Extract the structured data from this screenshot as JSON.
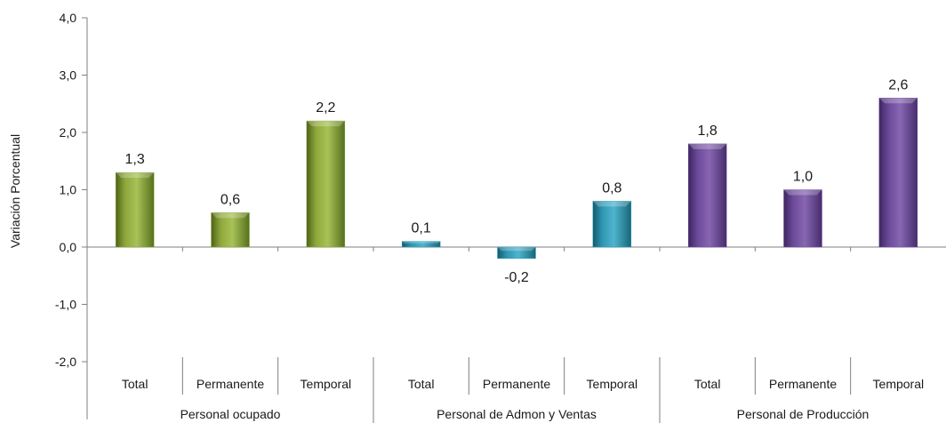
{
  "chart_data": {
    "type": "bar",
    "title": "",
    "xlabel": "",
    "ylabel": "Variación Porcentual",
    "ylim": [
      -2.0,
      4.0
    ],
    "yticks": [
      "4,0",
      "3,0",
      "2,0",
      "1,0",
      "0,0",
      "-1,0",
      "-2,0"
    ],
    "grid": false,
    "legend": "none",
    "colors": {
      "green": "#8aa33a",
      "teal": "#2f97b3",
      "purple": "#6d4a9a"
    },
    "groups": [
      {
        "name": "Personal ocupado",
        "color": "green",
        "categories": [
          "Total",
          "Permanente",
          "Temporal"
        ],
        "values": [
          1.3,
          0.6,
          2.2
        ],
        "labels": [
          "1,3",
          "0,6",
          "2,2"
        ]
      },
      {
        "name": "Personal de Admon y Ventas",
        "color": "teal",
        "categories": [
          "Total",
          "Permanente",
          "Temporal"
        ],
        "values": [
          0.1,
          -0.2,
          0.8
        ],
        "labels": [
          "0,1",
          "-0,2",
          "0,8"
        ]
      },
      {
        "name": "Personal de Producción",
        "color": "purple",
        "categories": [
          "Total",
          "Permanente",
          "Temporal"
        ],
        "values": [
          1.8,
          1.0,
          2.6
        ],
        "labels": [
          "1,8",
          "1,0",
          "2,6"
        ]
      }
    ]
  }
}
